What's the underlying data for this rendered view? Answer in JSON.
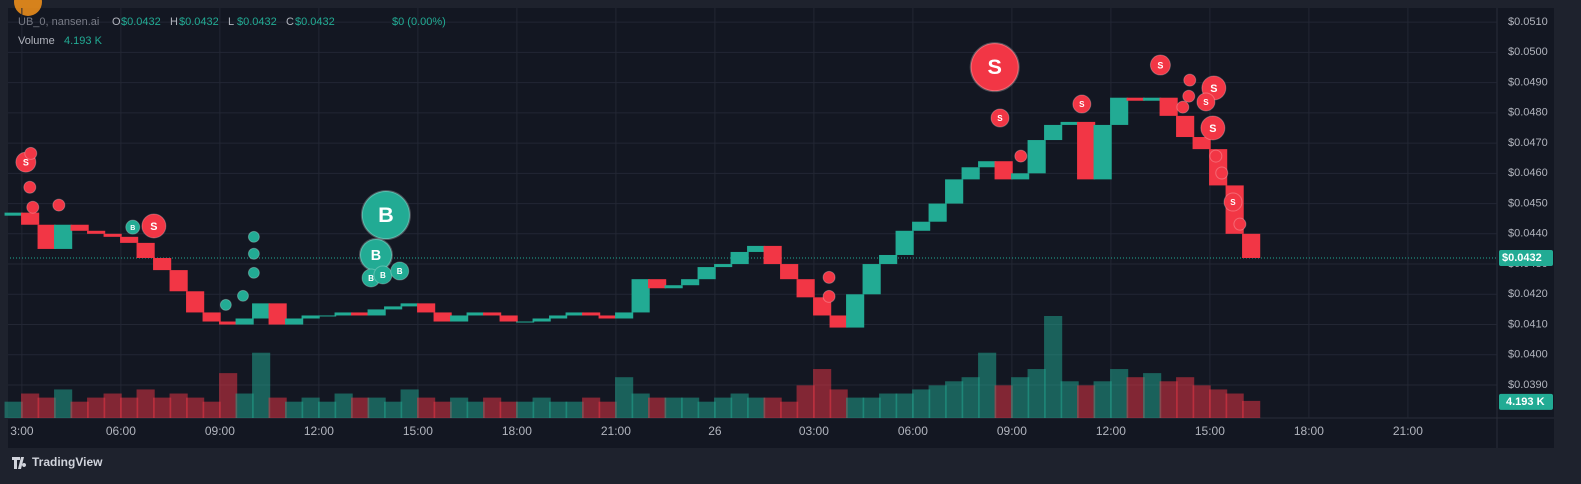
{
  "chart_data": {
    "type": "candlestick",
    "legend": {
      "symbol": "UB_0, nansen.ai",
      "ohlc": [
        {
          "key": "O",
          "value": "$0.0432"
        },
        {
          "key": "H",
          "value": "$0.0432"
        },
        {
          "key": "L",
          "value": "$0.0432"
        },
        {
          "key": "C",
          "value": "$0.0432"
        }
      ],
      "change": "$0 (0.00%)",
      "volume_name": "Volume"
    },
    "brand": "TradingView",
    "up_color": "#22ab94",
    "down_color": "#f23645",
    "x": [
      2.75,
      3.25,
      3.75,
      4.25,
      4.75,
      5.25,
      5.75,
      6.25,
      6.75,
      7.25,
      7.75,
      8.25,
      8.75,
      9.25,
      9.75,
      10.25,
      10.75,
      11.25,
      11.75,
      12.25,
      12.75,
      13.25,
      13.75,
      14.25,
      14.75,
      15.25,
      15.75,
      16.25,
      16.75,
      17.25,
      17.75,
      18.25,
      18.75,
      19.25,
      19.75,
      20.25,
      20.75,
      21.25,
      21.75,
      22.25,
      22.75,
      23.25,
      23.75,
      24.25,
      24.75,
      25.25,
      25.75,
      26.25,
      26.75,
      27.25,
      27.75,
      28.25,
      28.75,
      29.25,
      29.75,
      30.25,
      30.75,
      31.25,
      31.75,
      32.25,
      32.75,
      33.25,
      33.75,
      34.25,
      34.75,
      35.25,
      35.75,
      36.25,
      36.75,
      37.25,
      37.75,
      38.25,
      38.75,
      39.25,
      39.75,
      40.25
    ],
    "open": [
      0.0446,
      0.0447,
      0.0443,
      0.0435,
      0.0443,
      0.0441,
      0.044,
      0.0439,
      0.0437,
      0.0432,
      0.0428,
      0.0421,
      0.0414,
      0.0411,
      0.041,
      0.0412,
      0.0417,
      0.041,
      0.0412,
      0.0413,
      0.0413,
      0.0414,
      0.0413,
      0.0415,
      0.0416,
      0.0417,
      0.0414,
      0.0411,
      0.0413,
      0.0414,
      0.0413,
      0.0411,
      0.0411,
      0.0412,
      0.0413,
      0.0414,
      0.0413,
      0.0412,
      0.0414,
      0.0425,
      0.0422,
      0.0423,
      0.0425,
      0.0429,
      0.043,
      0.0434,
      0.0436,
      0.043,
      0.0425,
      0.0419,
      0.0413,
      0.0409,
      0.042,
      0.043,
      0.0433,
      0.0441,
      0.0444,
      0.045,
      0.0458,
      0.0462,
      0.0464,
      0.0458,
      0.046,
      0.0471,
      0.0476,
      0.0477,
      0.0458,
      0.0476,
      0.0485,
      0.0484,
      0.0485,
      0.0479,
      0.0472,
      0.0468,
      0.0456,
      0.044
    ],
    "close": [
      0.0447,
      0.0443,
      0.0435,
      0.0443,
      0.0441,
      0.044,
      0.0439,
      0.0437,
      0.0432,
      0.0428,
      0.0421,
      0.0414,
      0.0411,
      0.041,
      0.0412,
      0.0417,
      0.041,
      0.0412,
      0.0413,
      0.0413,
      0.0414,
      0.0413,
      0.0415,
      0.0416,
      0.0417,
      0.0414,
      0.0411,
      0.0413,
      0.0414,
      0.0413,
      0.0411,
      0.0411,
      0.0412,
      0.0413,
      0.0414,
      0.0413,
      0.0412,
      0.0414,
      0.0425,
      0.0422,
      0.0423,
      0.0425,
      0.0429,
      0.043,
      0.0434,
      0.0436,
      0.043,
      0.0425,
      0.0419,
      0.0413,
      0.0409,
      0.042,
      0.043,
      0.0433,
      0.0441,
      0.0444,
      0.045,
      0.0458,
      0.0462,
      0.0464,
      0.0458,
      0.046,
      0.0471,
      0.0476,
      0.0477,
      0.0458,
      0.0476,
      0.0485,
      0.0484,
      0.0485,
      0.0479,
      0.0472,
      0.0468,
      0.0456,
      0.044,
      0.0432
    ],
    "volume": [
      4,
      6,
      5,
      7,
      4,
      5,
      6,
      5,
      7,
      5,
      6,
      5,
      4,
      11,
      6,
      16,
      5,
      4,
      5,
      4,
      6,
      5,
      5,
      4,
      7,
      5,
      4,
      5,
      4,
      5,
      4,
      4,
      5,
      4,
      4,
      5,
      4,
      10,
      6,
      5,
      5,
      5,
      4,
      5,
      6,
      5,
      5,
      4,
      8,
      12,
      7,
      5,
      5,
      6,
      6,
      7,
      8,
      9,
      10,
      16,
      8,
      10,
      12,
      25,
      9,
      8,
      9,
      12,
      10,
      11,
      9,
      10,
      8,
      7,
      6,
      4.193
    ],
    "volume_ylim": [
      0,
      100
    ],
    "last_price_label": "$0.0432",
    "last_volume_label": "4.193 K",
    "xlim": [
      2.64,
      47.7
    ],
    "ylim": [
      0.03791,
      0.0514
    ],
    "xticks": [
      {
        "value": 3,
        "label": "3:00"
      },
      {
        "value": 6,
        "label": "06:00"
      },
      {
        "value": 9,
        "label": "09:00"
      },
      {
        "value": 12,
        "label": "12:00"
      },
      {
        "value": 15,
        "label": "15:00"
      },
      {
        "value": 18,
        "label": "18:00"
      },
      {
        "value": 21,
        "label": "21:00"
      },
      {
        "value": 24,
        "label": "26"
      },
      {
        "value": 27,
        "label": "03:00"
      },
      {
        "value": 30,
        "label": "06:00"
      },
      {
        "value": 33,
        "label": "09:00"
      },
      {
        "value": 36,
        "label": "12:00"
      },
      {
        "value": 39,
        "label": "15:00"
      },
      {
        "value": 42,
        "label": "18:00"
      },
      {
        "value": 45,
        "label": "21:00"
      }
    ],
    "yticks": [
      {
        "value": 0.051,
        "label": "$0.0510"
      },
      {
        "value": 0.05,
        "label": "$0.0500"
      },
      {
        "value": 0.049,
        "label": "$0.0490"
      },
      {
        "value": 0.048,
        "label": "$0.0480"
      },
      {
        "value": 0.047,
        "label": "$0.0470"
      },
      {
        "value": 0.046,
        "label": "$0.0460"
      },
      {
        "value": 0.045,
        "label": "$0.0450"
      },
      {
        "value": 0.044,
        "label": "$0.0440"
      },
      {
        "value": 0.043,
        "label": "$0.0430"
      },
      {
        "value": 0.042,
        "label": "$0.0420"
      },
      {
        "value": 0.041,
        "label": "$0.0410"
      },
      {
        "value": 0.04,
        "label": "$0.0400"
      },
      {
        "value": 0.039,
        "label": "$0.0390"
      }
    ],
    "grid": true,
    "markers": [
      {
        "x": 32.48,
        "y": 0.04951,
        "amount": 576,
        "color": "#f23645",
        "label": "S"
      },
      {
        "x": 14.03,
        "y": 0.04462,
        "amount": 576,
        "color": "#22ab94",
        "label": "B"
      },
      {
        "x": 13.73,
        "y": 0.0433,
        "amount": 256,
        "color": "#22ab94",
        "label": "B"
      },
      {
        "x": 13.58,
        "y": 0.04254,
        "amount": 81,
        "color": "#22ab94",
        "label": "B"
      },
      {
        "x": 13.94,
        "y": 0.04264,
        "amount": 81,
        "color": "#22ab94",
        "label": "B"
      },
      {
        "x": 14.45,
        "y": 0.04277,
        "amount": 81,
        "color": "#22ab94",
        "label": "B"
      },
      {
        "x": 7.0,
        "y": 0.04426,
        "amount": 144,
        "color": "#f23645",
        "label": "S"
      },
      {
        "x": 6.36,
        "y": 0.04422,
        "amount": 49,
        "color": "#22ab94",
        "label": "B"
      },
      {
        "x": 3.12,
        "y": 0.04637,
        "amount": 100,
        "color": "#f23645",
        "label": "S"
      },
      {
        "x": 37.5,
        "y": 0.04958,
        "amount": 100,
        "color": "#f23645",
        "label": "S"
      },
      {
        "x": 39.12,
        "y": 0.04882,
        "amount": 144,
        "color": "#f23645",
        "label": "S"
      },
      {
        "x": 39.09,
        "y": 0.0475,
        "amount": 144,
        "color": "#f23645",
        "label": "S"
      },
      {
        "x": 35.12,
        "y": 0.04829,
        "amount": 81,
        "color": "#f23645",
        "label": "S"
      },
      {
        "x": 32.64,
        "y": 0.04783,
        "amount": 81,
        "color": "#f23645",
        "label": "S"
      },
      {
        "x": 38.88,
        "y": 0.04836,
        "amount": 81,
        "color": "#f23645",
        "label": "S"
      },
      {
        "x": 39.7,
        "y": 0.04505,
        "amount": 81,
        "color": "#f23645",
        "label": "S"
      },
      {
        "x": 3.27,
        "y": 0.04666,
        "amount": 36,
        "color": "#f23645"
      },
      {
        "x": 3.24,
        "y": 0.04554,
        "amount": 36,
        "color": "#f23645"
      },
      {
        "x": 3.33,
        "y": 0.04488,
        "amount": 36,
        "color": "#f23645"
      },
      {
        "x": 4.12,
        "y": 0.04495,
        "amount": 36,
        "color": "#f23645"
      },
      {
        "x": 33.27,
        "y": 0.04657,
        "amount": 36,
        "color": "#f23645"
      },
      {
        "x": 27.46,
        "y": 0.04256,
        "amount": 36,
        "color": "#f23645"
      },
      {
        "x": 27.46,
        "y": 0.04193,
        "amount": 36,
        "color": "#f23645"
      },
      {
        "x": 38.39,
        "y": 0.04908,
        "amount": 36,
        "color": "#f23645"
      },
      {
        "x": 38.36,
        "y": 0.04855,
        "amount": 36,
        "color": "#f23645"
      },
      {
        "x": 38.18,
        "y": 0.04819,
        "amount": 36,
        "color": "#f23645"
      },
      {
        "x": 39.18,
        "y": 0.04657,
        "amount": 36,
        "color": "#f23645"
      },
      {
        "x": 39.91,
        "y": 0.04432,
        "amount": 36,
        "color": "#f23645"
      },
      {
        "x": 39.36,
        "y": 0.04601,
        "amount": 36,
        "color": "#f23645"
      },
      {
        "x": 10.03,
        "y": 0.0439,
        "amount": 30,
        "color": "#22ab94"
      },
      {
        "x": 10.03,
        "y": 0.04334,
        "amount": 30,
        "color": "#22ab94"
      },
      {
        "x": 10.03,
        "y": 0.04271,
        "amount": 30,
        "color": "#22ab94"
      },
      {
        "x": 9.7,
        "y": 0.04195,
        "amount": 30,
        "color": "#22ab94"
      },
      {
        "x": 9.18,
        "y": 0.04165,
        "amount": 30,
        "color": "#22ab94"
      }
    ]
  }
}
